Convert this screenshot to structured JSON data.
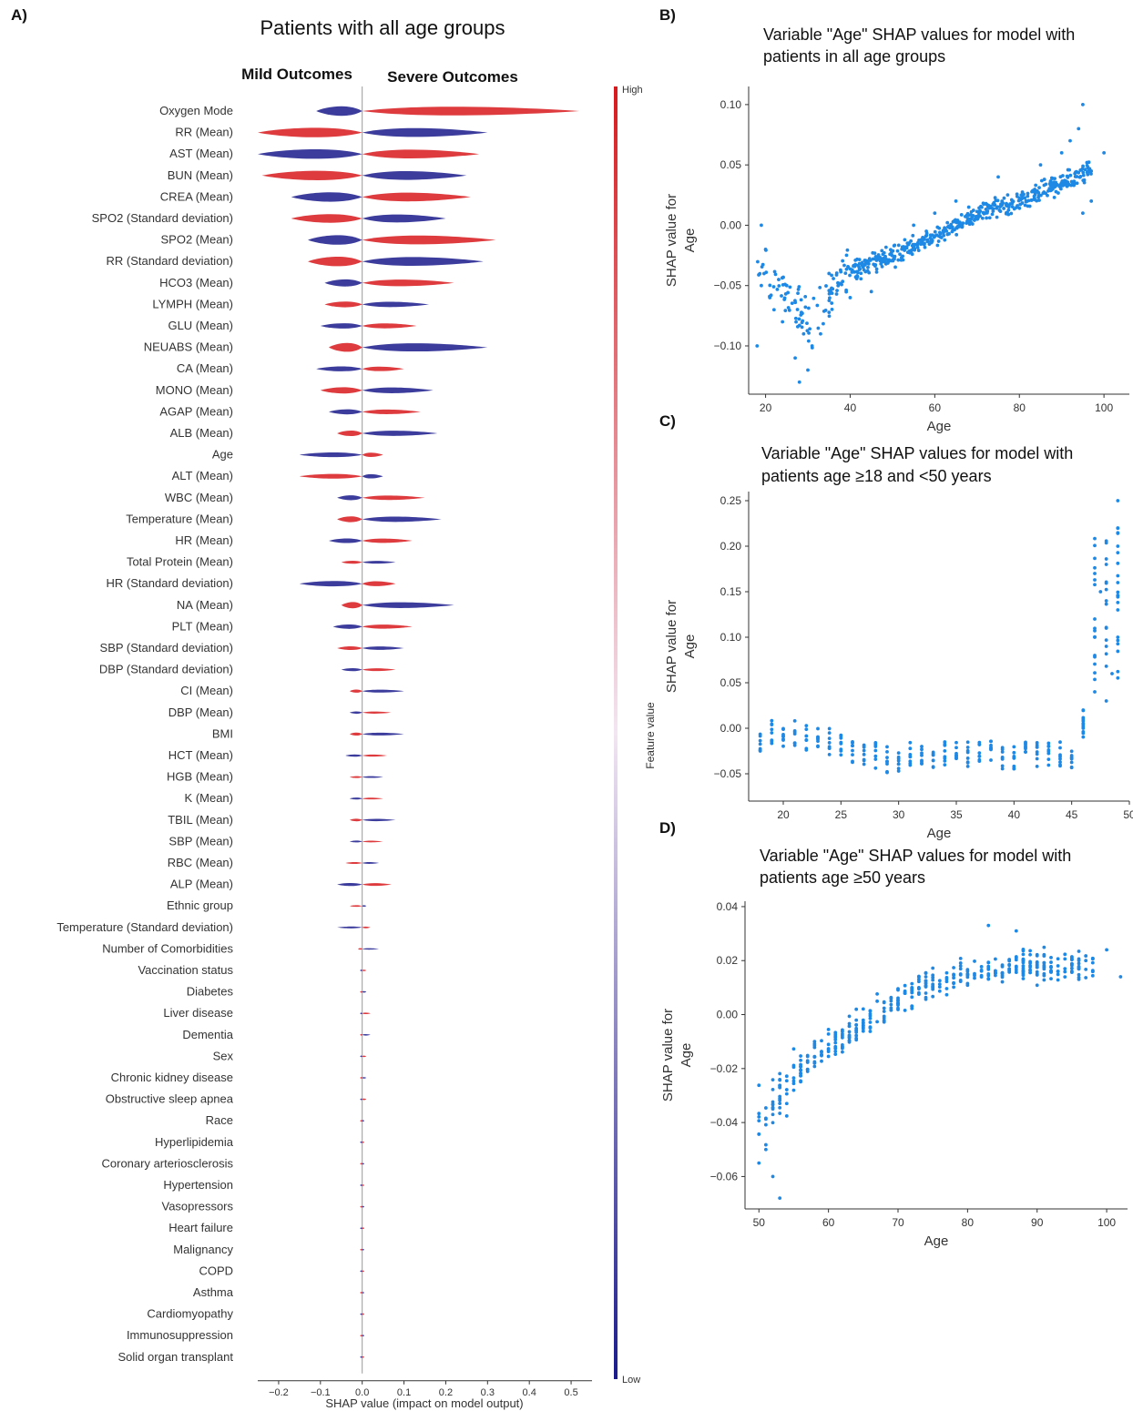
{
  "panels": {
    "a": {
      "letter": "A)",
      "title": "Patients with all age groups",
      "mild_label": "Mild Outcomes",
      "severe_label": "Severe Outcomes",
      "xlabel": "SHAP value (impact on model output)",
      "colorbar": {
        "high": "High",
        "low": "Low",
        "label": "Feature value"
      }
    },
    "b": {
      "letter": "B)",
      "title_lines": [
        "Variable \"Age\" SHAP values for model with",
        "patients in all age groups"
      ]
    },
    "c": {
      "letter": "C)",
      "title_lines": [
        "Variable \"Age\" SHAP values for model with",
        "patients age ≥18 and <50 years"
      ]
    },
    "d": {
      "letter": "D)",
      "title_lines": [
        "Variable \"Age\" SHAP values for model with",
        "patients age ≥50 years"
      ]
    }
  },
  "colors": {
    "high": "#d7191c",
    "low": "#1a1a8c",
    "points": "#1e88e5",
    "axis": "#333333"
  },
  "chart_data": [
    {
      "type": "violin",
      "id": "a",
      "xlim": [
        -0.25,
        0.55
      ],
      "xticks": [
        -0.2,
        -0.1,
        0.0,
        0.1,
        0.2,
        0.3,
        0.4,
        0.5
      ],
      "xtick_labels": [
        "−0.2",
        "−0.1",
        "0.0",
        "0.1",
        "0.2",
        "0.3",
        "0.4",
        "0.5"
      ],
      "features": [
        {
          "name": "Oxygen Mode",
          "neg": 0.11,
          "pos": 0.52
        },
        {
          "name": "RR (Mean)",
          "neg": 0.25,
          "pos": 0.3
        },
        {
          "name": "AST (Mean)",
          "neg": 0.25,
          "pos": 0.28
        },
        {
          "name": "BUN (Mean)",
          "neg": 0.24,
          "pos": 0.25
        },
        {
          "name": "CREA (Mean)",
          "neg": 0.17,
          "pos": 0.26
        },
        {
          "name": "SPO2 (Standard deviation)",
          "neg": 0.17,
          "pos": 0.2
        },
        {
          "name": "SPO2 (Mean)",
          "neg": 0.13,
          "pos": 0.32
        },
        {
          "name": "RR (Standard deviation)",
          "neg": 0.13,
          "pos": 0.29
        },
        {
          "name": "HCO3 (Mean)",
          "neg": 0.09,
          "pos": 0.22
        },
        {
          "name": "LYMPH (Mean)",
          "neg": 0.09,
          "pos": 0.16
        },
        {
          "name": "GLU (Mean)",
          "neg": 0.1,
          "pos": 0.13
        },
        {
          "name": "NEUABS (Mean)",
          "neg": 0.08,
          "pos": 0.3
        },
        {
          "name": "CA (Mean)",
          "neg": 0.11,
          "pos": 0.1
        },
        {
          "name": "MONO (Mean)",
          "neg": 0.1,
          "pos": 0.17
        },
        {
          "name": "AGAP (Mean)",
          "neg": 0.08,
          "pos": 0.14
        },
        {
          "name": "ALB (Mean)",
          "neg": 0.06,
          "pos": 0.18
        },
        {
          "name": "Age",
          "neg": 0.15,
          "pos": 0.05
        },
        {
          "name": "ALT (Mean)",
          "neg": 0.15,
          "pos": 0.05
        },
        {
          "name": "WBC (Mean)",
          "neg": 0.06,
          "pos": 0.15
        },
        {
          "name": "Temperature (Mean)",
          "neg": 0.06,
          "pos": 0.19
        },
        {
          "name": "HR (Mean)",
          "neg": 0.08,
          "pos": 0.12
        },
        {
          "name": "Total Protein (Mean)",
          "neg": 0.05,
          "pos": 0.08
        },
        {
          "name": "HR (Standard deviation)",
          "neg": 0.15,
          "pos": 0.08
        },
        {
          "name": "NA (Mean)",
          "neg": 0.05,
          "pos": 0.22
        },
        {
          "name": "PLT (Mean)",
          "neg": 0.07,
          "pos": 0.12
        },
        {
          "name": "SBP (Standard deviation)",
          "neg": 0.06,
          "pos": 0.1
        },
        {
          "name": "DBP (Standard deviation)",
          "neg": 0.05,
          "pos": 0.08
        },
        {
          "name": "CI (Mean)",
          "neg": 0.03,
          "pos": 0.1
        },
        {
          "name": "DBP (Mean)",
          "neg": 0.03,
          "pos": 0.07
        },
        {
          "name": "BMI",
          "neg": 0.03,
          "pos": 0.1
        },
        {
          "name": "HCT (Mean)",
          "neg": 0.04,
          "pos": 0.06
        },
        {
          "name": "HGB (Mean)",
          "neg": 0.03,
          "pos": 0.05
        },
        {
          "name": "K (Mean)",
          "neg": 0.03,
          "pos": 0.05
        },
        {
          "name": "TBIL (Mean)",
          "neg": 0.03,
          "pos": 0.08
        },
        {
          "name": "SBP (Mean)",
          "neg": 0.03,
          "pos": 0.05
        },
        {
          "name": "RBC (Mean)",
          "neg": 0.04,
          "pos": 0.04
        },
        {
          "name": "ALP (Mean)",
          "neg": 0.06,
          "pos": 0.07
        },
        {
          "name": "Ethnic group",
          "neg": 0.03,
          "pos": 0.01
        },
        {
          "name": "Temperature (Standard deviation)",
          "neg": 0.06,
          "pos": 0.02
        },
        {
          "name": "Number of Comorbidities",
          "neg": 0.01,
          "pos": 0.04
        },
        {
          "name": "Vaccination status",
          "neg": 0.005,
          "pos": 0.01
        },
        {
          "name": "Diabetes",
          "neg": 0.005,
          "pos": 0.01
        },
        {
          "name": "Liver disease",
          "neg": 0.005,
          "pos": 0.02
        },
        {
          "name": "Dementia",
          "neg": 0.005,
          "pos": 0.02
        },
        {
          "name": "Sex",
          "neg": 0.005,
          "pos": 0.01
        },
        {
          "name": "Chronic kidney disease",
          "neg": 0.005,
          "pos": 0.01
        },
        {
          "name": "Obstructive sleep apnea",
          "neg": 0.005,
          "pos": 0.01
        },
        {
          "name": "Race",
          "neg": 0.005,
          "pos": 0.005
        },
        {
          "name": "Hyperlipidemia",
          "neg": 0.005,
          "pos": 0.005
        },
        {
          "name": "Coronary arteriosclerosis",
          "neg": 0.005,
          "pos": 0.005
        },
        {
          "name": "Hypertension",
          "neg": 0.005,
          "pos": 0.005
        },
        {
          "name": "Vasopressors",
          "neg": 0.005,
          "pos": 0.005
        },
        {
          "name": "Heart failure",
          "neg": 0.005,
          "pos": 0.005
        },
        {
          "name": "Malignancy",
          "neg": 0.005,
          "pos": 0.005
        },
        {
          "name": "COPD",
          "neg": 0.005,
          "pos": 0.005
        },
        {
          "name": "Asthma",
          "neg": 0.005,
          "pos": 0.005
        },
        {
          "name": "Cardiomyopathy",
          "neg": 0.005,
          "pos": 0.005
        },
        {
          "name": "Immunosuppression",
          "neg": 0.005,
          "pos": 0.005
        },
        {
          "name": "Solid organ transplant",
          "neg": 0.005,
          "pos": 0.005
        }
      ]
    },
    {
      "type": "scatter",
      "id": "b",
      "xlabel": "Age",
      "ylabel_lines": [
        "SHAP value for",
        "Age"
      ],
      "xlim": [
        16,
        106
      ],
      "ylim": [
        -0.14,
        0.115
      ],
      "xticks": [
        20,
        40,
        60,
        80,
        100
      ],
      "yticks": [
        -0.1,
        -0.05,
        0.0,
        0.05,
        0.1
      ],
      "ytick_labels": [
        "−0.10",
        "−0.05",
        "0.00",
        "0.05",
        "0.10"
      ],
      "trend": [
        [
          18,
          -0.03
        ],
        [
          25,
          -0.06
        ],
        [
          30,
          -0.08
        ],
        [
          35,
          -0.06
        ],
        [
          38,
          -0.04
        ],
        [
          50,
          -0.025
        ],
        [
          60,
          -0.01
        ],
        [
          70,
          0.01
        ],
        [
          80,
          0.02
        ],
        [
          90,
          0.035
        ],
        [
          96,
          0.045
        ]
      ],
      "points": [
        [
          18,
          -0.1
        ],
        [
          19,
          -0.05
        ],
        [
          19,
          0.0
        ],
        [
          20,
          -0.02
        ],
        [
          21,
          -0.06
        ],
        [
          22,
          -0.07
        ],
        [
          24,
          -0.08
        ],
        [
          25,
          -0.05
        ],
        [
          27,
          -0.11
        ],
        [
          28,
          -0.13
        ],
        [
          29,
          -0.09
        ],
        [
          30,
          -0.12
        ],
        [
          31,
          -0.1
        ],
        [
          33,
          -0.09
        ],
        [
          35,
          -0.04
        ],
        [
          40,
          -0.06
        ],
        [
          45,
          -0.055
        ],
        [
          55,
          0.0
        ],
        [
          60,
          0.01
        ],
        [
          65,
          0.02
        ],
        [
          75,
          0.04
        ],
        [
          85,
          0.05
        ],
        [
          90,
          0.06
        ],
        [
          92,
          0.07
        ],
        [
          94,
          0.08
        ],
        [
          95,
          0.1
        ],
        [
          95,
          0.01
        ],
        [
          97,
          0.02
        ],
        [
          100,
          0.06
        ]
      ],
      "spread": 0.022,
      "n_cloud": 520
    },
    {
      "type": "scatter",
      "id": "c",
      "xlabel": "Age",
      "ylabel_lines": [
        "SHAP value for",
        "Age"
      ],
      "xlim": [
        17,
        50
      ],
      "ylim": [
        -0.08,
        0.26
      ],
      "xticks": [
        20,
        25,
        30,
        35,
        40,
        45,
        50
      ],
      "yticks": [
        -0.05,
        0.0,
        0.05,
        0.1,
        0.15,
        0.2,
        0.25
      ],
      "ytick_labels": [
        "−0.05",
        "0.00",
        "0.05",
        "0.10",
        "0.15",
        "0.20",
        "0.25"
      ],
      "ages": [
        18,
        19,
        20,
        21,
        22,
        23,
        24,
        25,
        26,
        27,
        28,
        29,
        30,
        31,
        32,
        33,
        34,
        35,
        36,
        37,
        38,
        39,
        40,
        41,
        42,
        43,
        44,
        45,
        46
      ],
      "age_center": [
        -0.01,
        -0.005,
        -0.01,
        -0.005,
        -0.01,
        -0.015,
        -0.015,
        -0.02,
        -0.025,
        -0.025,
        -0.03,
        -0.035,
        -0.035,
        -0.03,
        -0.035,
        -0.03,
        -0.03,
        -0.03,
        -0.03,
        -0.03,
        -0.028,
        -0.03,
        -0.03,
        -0.03,
        -0.03,
        -0.03,
        -0.03,
        -0.03,
        0.005
      ],
      "tail_points": [
        [
          46,
          0.02
        ],
        [
          46,
          0.01
        ],
        [
          47,
          0.1
        ],
        [
          47,
          0.12
        ],
        [
          47,
          0.08
        ],
        [
          47,
          0.17
        ],
        [
          47,
          0.04
        ],
        [
          48,
          0.14
        ],
        [
          48,
          0.11
        ],
        [
          48,
          0.09
        ],
        [
          48,
          0.18
        ],
        [
          48,
          0.03
        ],
        [
          49,
          0.2
        ],
        [
          49,
          0.16
        ],
        [
          49,
          0.25
        ],
        [
          49,
          0.13
        ],
        [
          49,
          0.1
        ],
        [
          49,
          0.22
        ],
        [
          48.5,
          0.06
        ],
        [
          47.5,
          0.15
        ]
      ]
    },
    {
      "type": "scatter",
      "id": "d",
      "xlabel": "Age",
      "ylabel_lines": [
        "SHAP value for",
        "Age"
      ],
      "xlim": [
        48,
        103
      ],
      "ylim": [
        -0.072,
        0.042
      ],
      "xticks": [
        50,
        60,
        70,
        80,
        90,
        100
      ],
      "yticks": [
        -0.06,
        -0.04,
        -0.02,
        0.0,
        0.02,
        0.04
      ],
      "ytick_labels": [
        "−0.06",
        "−0.04",
        "−0.02",
        "0.00",
        "0.02",
        "0.04"
      ],
      "trend": [
        [
          50,
          -0.04
        ],
        [
          53,
          -0.03
        ],
        [
          55,
          -0.022
        ],
        [
          60,
          -0.012
        ],
        [
          65,
          -0.003
        ],
        [
          70,
          0.006
        ],
        [
          75,
          0.012
        ],
        [
          80,
          0.015
        ],
        [
          85,
          0.018
        ],
        [
          90,
          0.018
        ],
        [
          95,
          0.017
        ],
        [
          100,
          0.02
        ]
      ],
      "points": [
        [
          53,
          -0.068
        ],
        [
          52,
          -0.06
        ],
        [
          50,
          -0.055
        ],
        [
          51,
          -0.05
        ],
        [
          58,
          -0.01
        ],
        [
          83,
          0.033
        ],
        [
          87,
          0.031
        ],
        [
          102,
          0.014
        ],
        [
          100,
          0.024
        ]
      ],
      "spread": 0.008,
      "n_cloud": 430
    }
  ]
}
